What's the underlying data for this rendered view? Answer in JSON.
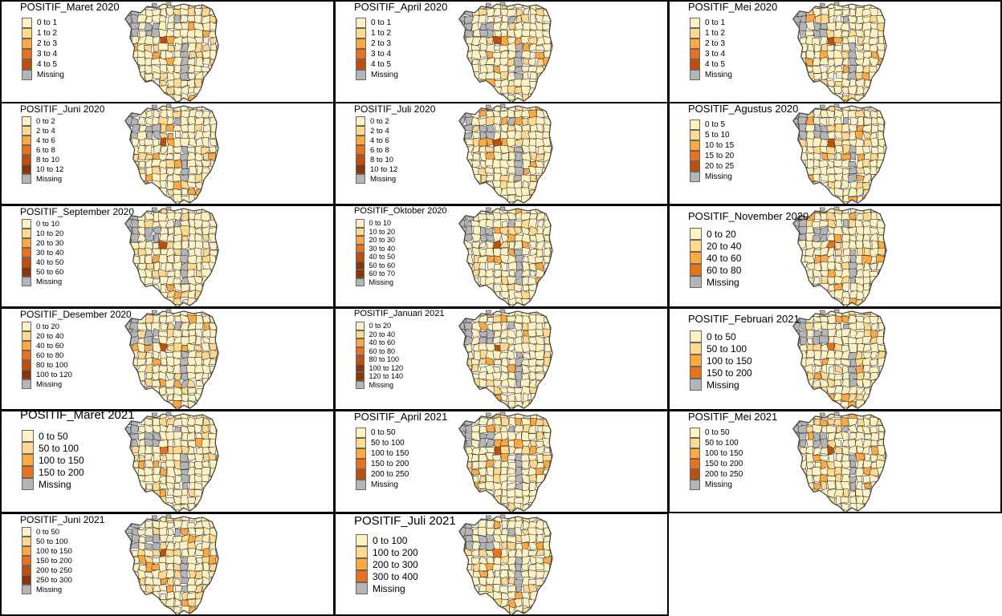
{
  "colors": {
    "c1": "#fff2c2",
    "c2": "#fed98e",
    "c3": "#fea841",
    "c4": "#e8731e",
    "c5": "#c24f09",
    "c6": "#8c3404",
    "missing": "#b5b5b5",
    "border": "#3a3a3a"
  },
  "panels": [
    {
      "title": "POSITIF_Maret 2020",
      "labels": [
        "0 to 1",
        "1 to 2",
        "2 to 3",
        "3 to 4",
        "4 to 5"
      ],
      "missing": "Missing"
    },
    {
      "title": "POSITIF_April 2020",
      "labels": [
        "0 to 1",
        "1 to 2",
        "2 to 3",
        "3 to 4",
        "4 to 5"
      ],
      "missing": "Missing"
    },
    {
      "title": "POSITIF_Mei 2020",
      "labels": [
        "0 to 1",
        "1 to 2",
        "2 to 3",
        "3 to 4",
        "4 to 5"
      ],
      "missing": "Missing"
    },
    {
      "title": "POSITIF_Juni 2020",
      "labels": [
        "0 to 2",
        "2 to 4",
        "4 to 6",
        "6 to 8",
        "8 to 10",
        "10 to 12"
      ],
      "missing": "Missing"
    },
    {
      "title": "POSITIF_Juli 2020",
      "labels": [
        "0 to 2",
        "2 to 4",
        "4 to 6",
        "6 to 8",
        "8 to 10",
        "10 to 12"
      ],
      "missing": "Missing"
    },
    {
      "title": "POSITIF_Agustus 2020",
      "labels": [
        "0 to 5",
        "5 to 10",
        "10 to 15",
        "15 to 20",
        "20 to 25"
      ],
      "missing": "Missing"
    },
    {
      "title": "POSITIF_September 2020",
      "labels": [
        "0 to 10",
        "10 to 20",
        "20 to 30",
        "30 to 40",
        "40 to 50",
        "50 to 60"
      ],
      "missing": "Missing"
    },
    {
      "title": "POSITIF_Oktober 2020",
      "labels": [
        "0 to 10",
        "10 to 20",
        "20 to 30",
        "30 to 40",
        "40 to 50",
        "50 to 60",
        "60 to 70"
      ],
      "missing": "Missing"
    },
    {
      "title": "POSITIF_November 2020",
      "labels": [
        "0 to 20",
        "20 to 40",
        "40 to 60",
        "60 to 80"
      ],
      "missing": "Missing"
    },
    {
      "title": "POSITIF_Desember 2020",
      "labels": [
        "0 to 20",
        "20 to 40",
        "40 to 60",
        "60 to 80",
        "80 to 100",
        "100 to 120"
      ],
      "missing": "Missing"
    },
    {
      "title": "POSITIF_Januari 2021",
      "labels": [
        "0 to 20",
        "20 to 40",
        "40 to 60",
        "60 to 80",
        "80 to 100",
        "100 to 120",
        "120 to 140"
      ],
      "missing": "Missing"
    },
    {
      "title": "POSITIF_Februari 2021",
      "labels": [
        "0 to 50",
        "50 to 100",
        "100 to 150",
        "150 to 200"
      ],
      "missing": "Missing"
    },
    {
      "title": "POSITIF_Maret 2021",
      "labels": [
        "0 to 50",
        "50 to 100",
        "100 to 150",
        "150 to 200"
      ],
      "missing": "Missing"
    },
    {
      "title": "POSITIF_April 2021",
      "labels": [
        "0 to 50",
        "50 to 100",
        "100 to 150",
        "150 to 200",
        "200 to 250"
      ],
      "missing": "Missing"
    },
    {
      "title": "POSITIF_Mei 2021",
      "labels": [
        "0 to 50",
        "50 to 100",
        "100 to 150",
        "150 to 200",
        "200 to 250"
      ],
      "missing": "Missing"
    },
    {
      "title": "POSITIF_Juni 2021",
      "labels": [
        "0 to 50",
        "50 to 100",
        "100 to 150",
        "150 to 200",
        "200 to 250",
        "250 to 300"
      ],
      "missing": "Missing"
    },
    {
      "title": "POSITIF_Juli 2021",
      "labels": [
        "0 to 100",
        "100 to 200",
        "200 to 300",
        "300 to 400"
      ],
      "missing": "Missing"
    }
  ]
}
